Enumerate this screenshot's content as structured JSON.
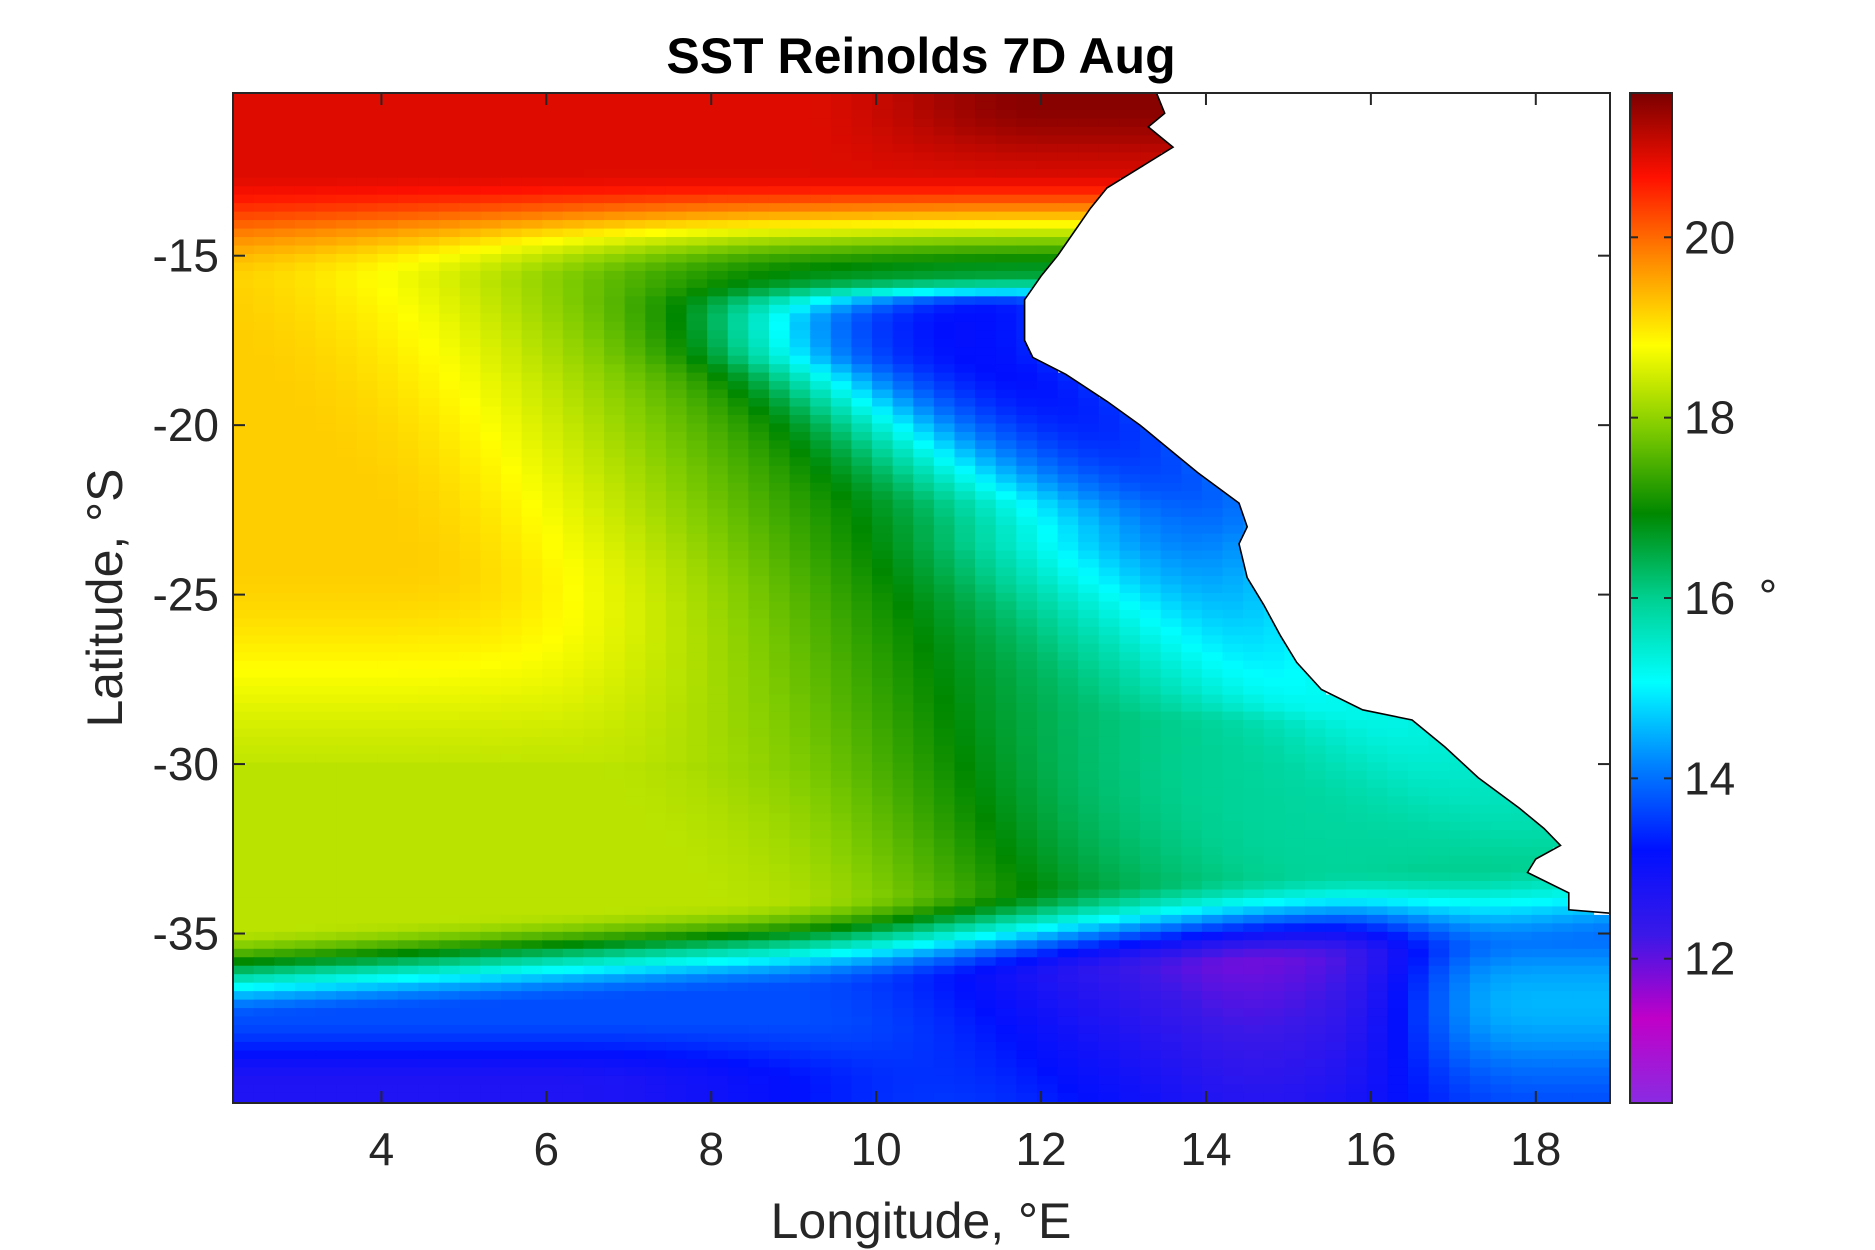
{
  "chart_data": {
    "type": "heatmap",
    "title": "SST Reinolds 7D Aug",
    "xlabel": "Longitude, °E",
    "ylabel": "Latitude, °S",
    "xlim": [
      2.2,
      18.9
    ],
    "ylim": [
      -40,
      -10.2
    ],
    "x_ticks": [
      4,
      6,
      8,
      10,
      12,
      14,
      16,
      18
    ],
    "x_tick_labels": [
      "4",
      "6",
      "8",
      "10",
      "12",
      "14",
      "16",
      "18"
    ],
    "y_ticks": [
      -15,
      -20,
      -25,
      -30,
      -35
    ],
    "y_tick_labels": [
      "-15",
      "-20",
      "-25",
      "-30",
      "-35"
    ],
    "colorbar": {
      "min": 10.4,
      "max": 21.6,
      "ticks": [
        12,
        14,
        16,
        18,
        20
      ],
      "tick_labels": [
        "12",
        "14",
        "16",
        "18",
        "20"
      ],
      "unit_label": "°",
      "colors": [
        "#8a2be2",
        "#c000c8",
        "#3a18e8",
        "#0010ff",
        "#0080ff",
        "#00ffff",
        "#00d090",
        "#008800",
        "#7ecb00",
        "#ffff00",
        "#ff8c00",
        "#ff1000",
        "#7a0000"
      ]
    },
    "grid": false,
    "field_description_points": {
      "north_band_lat": -11,
      "north_band_value": 21,
      "upwelling_core_value": 13.5,
      "south_band_lat": -38.5,
      "south_band_value": 11.8
    },
    "coastline": [
      [
        13.4,
        -10.2
      ],
      [
        13.5,
        -10.8
      ],
      [
        13.3,
        -11.2
      ],
      [
        13.6,
        -11.8
      ],
      [
        13.2,
        -12.4
      ],
      [
        12.8,
        -13.0
      ],
      [
        12.6,
        -13.6
      ],
      [
        12.4,
        -14.3
      ],
      [
        12.2,
        -15.0
      ],
      [
        12.0,
        -15.6
      ],
      [
        11.8,
        -16.3
      ],
      [
        11.8,
        -17.0
      ],
      [
        11.8,
        -17.5
      ],
      [
        11.9,
        -18.0
      ],
      [
        12.3,
        -18.5
      ],
      [
        12.8,
        -19.3
      ],
      [
        13.2,
        -20.0
      ],
      [
        13.5,
        -20.6
      ],
      [
        13.9,
        -21.4
      ],
      [
        14.4,
        -22.3
      ],
      [
        14.5,
        -23.0
      ],
      [
        14.4,
        -23.5
      ],
      [
        14.5,
        -24.5
      ],
      [
        14.7,
        -25.3
      ],
      [
        14.9,
        -26.2
      ],
      [
        15.1,
        -27.0
      ],
      [
        15.4,
        -27.8
      ],
      [
        15.9,
        -28.4
      ],
      [
        16.5,
        -28.7
      ],
      [
        16.9,
        -29.5
      ],
      [
        17.3,
        -30.4
      ],
      [
        17.8,
        -31.3
      ],
      [
        18.1,
        -31.9
      ],
      [
        18.3,
        -32.4
      ],
      [
        18.0,
        -32.8
      ],
      [
        17.9,
        -33.2
      ],
      [
        18.4,
        -33.8
      ],
      [
        18.4,
        -34.3
      ],
      [
        18.9,
        -34.4
      ]
    ]
  }
}
